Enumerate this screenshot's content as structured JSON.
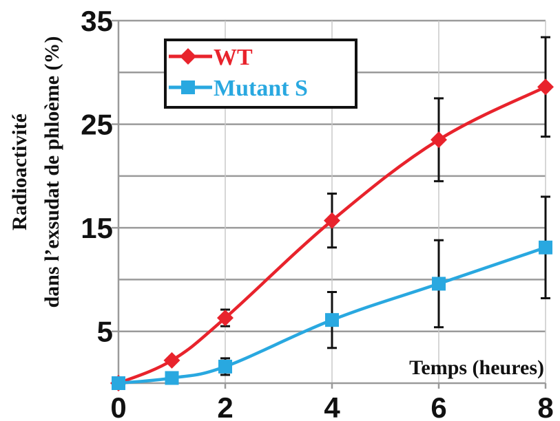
{
  "chart_data": {
    "type": "line",
    "xlabel": "Temps (heures)",
    "ylabel_lines": [
      "Radioactivité",
      "dans l’exsudat de phloème (%)"
    ],
    "x": [
      0,
      1,
      2,
      4,
      6,
      8
    ],
    "xticks": [
      0,
      2,
      4,
      6,
      8
    ],
    "yticks": [
      5,
      15,
      25,
      35
    ],
    "xlim": [
      0,
      8
    ],
    "ylim": [
      0,
      35
    ],
    "grid": "horizontal",
    "legend_position": "top-left",
    "series": [
      {
        "name": "WT",
        "color": "#e8232c",
        "marker": "diamond",
        "values": [
          0,
          2.2,
          6.3,
          15.7,
          23.5,
          28.6
        ],
        "errors": [
          null,
          null,
          0.8,
          2.6,
          4.0,
          4.8
        ]
      },
      {
        "name": "Mutant S",
        "color": "#29a8e0",
        "marker": "square",
        "values": [
          0,
          0.5,
          1.6,
          6.1,
          9.6,
          13.1
        ],
        "errors": [
          null,
          null,
          0.8,
          2.7,
          4.2,
          4.9
        ]
      }
    ]
  }
}
